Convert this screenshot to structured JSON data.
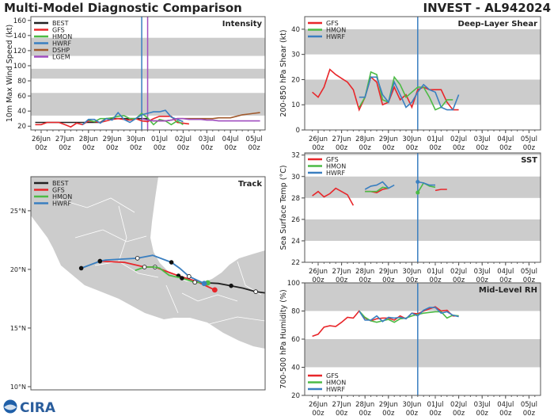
{
  "header": {
    "title": "Multi-Model Diagnostic Comparison",
    "storm": "INVEST - AL942024"
  },
  "colors": {
    "BEST": "#222222",
    "GFS": "#e8262a",
    "HMON": "#4cba45",
    "HWRF": "#3a7fc0",
    "DSHP": "#a0592c",
    "LGEM": "#a04ec0",
    "band": "#cccccc",
    "land": "#cccccc"
  },
  "x_ticks": [
    [
      "26Jun",
      "00z"
    ],
    [
      "27Jun",
      "00z"
    ],
    [
      "28Jun",
      "00z"
    ],
    [
      "29Jun",
      "00z"
    ],
    [
      "30Jun",
      "00z"
    ],
    [
      "01Jul",
      "00z"
    ],
    [
      "02Jul",
      "00z"
    ],
    [
      "03Jul",
      "00z"
    ],
    [
      "04Jul",
      "00z"
    ],
    [
      "05Jul",
      "00z"
    ]
  ],
  "chart_data": [
    {
      "id": "intensity",
      "type": "line",
      "title": "Intensity",
      "ylabel": "10m Max Wind Speed (kt)",
      "ylim": [
        15,
        165
      ],
      "yticks": [
        20,
        40,
        60,
        80,
        100,
        120,
        140,
        160
      ],
      "bands": [
        [
          34,
          64
        ],
        [
          83,
          96
        ],
        [
          113,
          137
        ]
      ],
      "vlines": [
        {
          "time": "30Jun 06z",
          "color": "HWRF"
        },
        {
          "time": "30Jun 12z",
          "color": "LGEM"
        }
      ],
      "legend": [
        "BEST",
        "GFS",
        "HMON",
        "HWRF",
        "DSHP",
        "LGEM"
      ],
      "legend_position": "top-left",
      "series": [
        {
          "name": "BEST",
          "start": "25Jun 18z",
          "interval_hours": 6,
          "values": [
            25,
            25,
            25,
            25,
            25,
            25,
            25,
            25,
            25,
            25,
            25,
            25,
            30,
            30,
            30,
            30,
            30,
            30,
            30,
            30
          ]
        },
        {
          "name": "GFS",
          "start": "25Jun 18z",
          "interval_hours": 6,
          "values": [
            22,
            22,
            25,
            25,
            25,
            22,
            19,
            24,
            22,
            27,
            26,
            25,
            27,
            29,
            30,
            29,
            28,
            30,
            27,
            26,
            30,
            33,
            33,
            33,
            25,
            24,
            23
          ]
        },
        {
          "name": "HMON",
          "start": "28Jun 00z",
          "interval_hours": 6,
          "values": [
            28,
            26,
            30,
            30,
            31,
            33,
            34,
            30,
            30,
            37,
            31,
            22,
            29,
            27,
            22,
            27,
            22
          ]
        },
        {
          "name": "HWRF",
          "start": "27Jun 18z",
          "interval_hours": 6,
          "values": [
            22,
            29,
            29,
            24,
            30,
            28,
            38,
            29,
            25,
            30,
            35,
            37,
            39,
            39,
            41,
            32,
            29,
            26
          ]
        },
        {
          "name": "DSHP",
          "start": "30Jun 06z",
          "interval_hours": 6,
          "values": [
            30,
            28,
            27,
            27,
            27,
            28,
            30,
            30,
            30,
            30,
            30,
            30,
            30,
            31,
            31,
            31,
            33,
            35,
            36,
            37,
            38
          ]
        },
        {
          "name": "LGEM",
          "start": "30Jun 06z",
          "interval_hours": 6,
          "values": [
            30,
            28,
            27,
            27,
            27,
            28,
            30,
            30,
            29,
            29,
            29,
            28,
            28,
            27,
            27,
            27,
            27,
            27,
            27,
            27,
            27
          ]
        }
      ]
    },
    {
      "id": "shear",
      "type": "line",
      "title": "Deep-Layer Shear",
      "ylabel": "200-850 hPa Shear (kt)",
      "ylim": [
        0,
        45
      ],
      "yticks": [
        0,
        10,
        20,
        30,
        40
      ],
      "bands": [
        [
          10,
          20
        ],
        [
          30,
          40
        ]
      ],
      "vlines": [
        {
          "time": "30Jun 06z",
          "color": "HWRF"
        }
      ],
      "legend": [
        "GFS",
        "HMON",
        "HWRF"
      ],
      "legend_position": "top-left",
      "series": [
        {
          "name": "GFS",
          "start": "25Jun 18z",
          "interval_hours": 6,
          "values": [
            15,
            13,
            17,
            24,
            22,
            20.5,
            19,
            16,
            8,
            13,
            21,
            19,
            10,
            11,
            17,
            12,
            14,
            9,
            16,
            17,
            16,
            16,
            16,
            11,
            8,
            8
          ]
        },
        {
          "name": "HMON",
          "start": "27Jun 18z",
          "interval_hours": 6,
          "values": [
            9,
            13,
            23,
            22,
            12,
            11,
            21,
            18,
            13,
            15,
            17,
            17,
            13,
            8,
            9,
            12,
            12
          ]
        },
        {
          "name": "HWRF",
          "start": "27Jun 18z",
          "interval_hours": 6,
          "values": [
            13,
            13,
            21,
            21,
            14,
            11,
            19,
            14,
            9,
            11,
            15,
            18,
            16,
            15,
            9,
            8,
            8,
            14
          ]
        }
      ]
    },
    {
      "id": "sst",
      "type": "line",
      "title": "SST",
      "ylabel": "Sea Surface Temp (°C)",
      "ylim": [
        22,
        32.2
      ],
      "yticks": [
        22,
        24,
        26,
        28,
        30,
        32
      ],
      "bands": [
        [
          24,
          26
        ],
        [
          28,
          30
        ],
        [
          32,
          34
        ]
      ],
      "vlines": [
        {
          "time": "30Jun 06z",
          "color": "HWRF"
        }
      ],
      "legend": [
        "GFS",
        "HMON",
        "HWRF"
      ],
      "legend_position": "top-left",
      "series": [
        {
          "name": "GFS",
          "start": "25Jun 18z",
          "interval_hours": 6,
          "values": [
            28.2,
            28.6,
            28.1,
            28.4,
            28.9,
            28.6,
            28.3,
            27.3,
            null,
            28.6,
            28.6,
            28.5,
            28.8,
            28.9,
            null,
            null,
            null,
            null,
            null,
            null,
            null,
            28.7,
            28.8,
            28.8
          ]
        },
        {
          "name": "HMON",
          "start": "28Jun 00z",
          "interval_hours": 6,
          "values": [
            28.6,
            28.6,
            28.6,
            29.0,
            28.9,
            null,
            null,
            null,
            null,
            28.5,
            29.4,
            29.1,
            29.0
          ]
        },
        {
          "name": "HWRF",
          "start": "28Jun 00z",
          "interval_hours": 6,
          "values": [
            28.8,
            29.1,
            29.2,
            29.5,
            28.9,
            29.2,
            null,
            null,
            null,
            29.5,
            29.4,
            29.2,
            29.2
          ]
        }
      ]
    },
    {
      "id": "rh",
      "type": "line",
      "title": "Mid-Level RH",
      "ylabel": "700-500 hPa Humidity (%)",
      "ylim": [
        20,
        100
      ],
      "yticks": [
        20,
        40,
        60,
        80,
        100
      ],
      "bands": [
        [
          40,
          60
        ],
        [
          80,
          100
        ]
      ],
      "vlines": [
        {
          "time": "30Jun 06z",
          "color": "HWRF"
        }
      ],
      "legend": [
        "GFS",
        "HMON",
        "HWRF"
      ],
      "legend_position": "bottom-left",
      "series": [
        {
          "name": "GFS",
          "start": "25Jun 18z",
          "interval_hours": 6,
          "values": [
            62,
            63.5,
            68.5,
            69.5,
            69,
            72,
            75.5,
            75,
            80,
            75,
            73,
            74.5,
            75,
            75,
            73.5,
            76.5,
            74.5,
            78.5,
            78,
            80,
            81.5,
            83,
            80,
            80.5,
            76.5,
            76.5
          ]
        },
        {
          "name": "HMON",
          "start": "27Jun 18z",
          "interval_hours": 6,
          "values": [
            80,
            75.5,
            73,
            72,
            73,
            74,
            72,
            74.5,
            75,
            76.5,
            77.5,
            78.5,
            79,
            79.5,
            79.5,
            75,
            77,
            76.5
          ]
        },
        {
          "name": "HWRF",
          "start": "27Jun 18z",
          "interval_hours": 6,
          "values": [
            80,
            73.5,
            73.5,
            76.5,
            72.5,
            75.5,
            75,
            75.5,
            74.5,
            78.5,
            76.5,
            80.5,
            82.5,
            82.5,
            78.5,
            79.5,
            77,
            76
          ]
        }
      ]
    },
    {
      "id": "track",
      "type": "map",
      "title": "Track",
      "lon_range": [
        -107.5,
        -87.5
      ],
      "lat_range": [
        9.73,
        27.9
      ],
      "lat_ticks": [
        10,
        15,
        20,
        25
      ],
      "lat_tick_labels": [
        "10°N",
        "15°N",
        "20°N",
        "25°N"
      ],
      "legend": [
        "BEST",
        "GFS",
        "HMON",
        "HWRF"
      ],
      "legend_position": "top-left",
      "tracks": [
        {
          "name": "BEST",
          "points": [
            [
              -87.5,
              18.0
            ],
            [
              -88.3,
              18.1
            ],
            [
              -89.4,
              18.4
            ],
            [
              -90.4,
              18.6
            ],
            [
              -91.5,
              18.8
            ],
            [
              -92.4,
              18.85
            ]
          ],
          "markers": [
            {
              "lon": -88.3,
              "lat": 18.1,
              "style": "open"
            },
            {
              "lon": -90.4,
              "lat": 18.6,
              "style": "filled"
            }
          ]
        },
        {
          "name": "GFS",
          "points": [
            [
              -91.8,
              18.25
            ],
            [
              -93.4,
              19.0
            ],
            [
              -94.9,
              19.45
            ],
            [
              -96.9,
              20.2
            ],
            [
              -97.8,
              20.2
            ],
            [
              -99.5,
              20.6
            ],
            [
              -101.6,
              20.7
            ]
          ],
          "markers": [
            {
              "lon": -91.8,
              "lat": 18.25,
              "style": "start"
            },
            {
              "lon": -94.9,
              "lat": 19.45,
              "style": "filled"
            },
            {
              "lon": -96.9,
              "lat": 20.2,
              "style": "open"
            },
            {
              "lon": -101.6,
              "lat": 20.7,
              "style": "filled"
            }
          ]
        },
        {
          "name": "HMON",
          "points": [
            [
              -92.4,
              18.85
            ],
            [
              -93.5,
              18.9
            ],
            [
              -94.6,
              19.25
            ],
            [
              -95.7,
              19.5
            ],
            [
              -96.5,
              20.1
            ],
            [
              -96.9,
              20.2
            ],
            [
              -97.8,
              20.2
            ],
            [
              -98.6,
              19.9
            ]
          ],
          "markers": [
            {
              "lon": -92.4,
              "lat": 18.85,
              "style": "start"
            },
            {
              "lon": -93.5,
              "lat": 18.9,
              "style": "open"
            },
            {
              "lon": -94.6,
              "lat": 19.25,
              "style": "filled"
            },
            {
              "lon": -97.8,
              "lat": 20.2,
              "style": "open"
            }
          ]
        },
        {
          "name": "HWRF",
          "points": [
            [
              -92.7,
              18.8
            ],
            [
              -94.0,
              19.4
            ],
            [
              -94.8,
              20.1
            ],
            [
              -95.5,
              20.6
            ],
            [
              -97.1,
              21.2
            ],
            [
              -98.4,
              20.95
            ],
            [
              -101.1,
              20.8
            ],
            [
              -101.6,
              20.7
            ],
            [
              -103.2,
              20.1
            ]
          ],
          "markers": [
            {
              "lon": -92.7,
              "lat": 18.8,
              "style": "start"
            },
            {
              "lon": -94.0,
              "lat": 19.4,
              "style": "open"
            },
            {
              "lon": -95.5,
              "lat": 20.6,
              "style": "filled"
            },
            {
              "lon": -98.4,
              "lat": 20.95,
              "style": "open"
            },
            {
              "lon": -101.6,
              "lat": 20.7,
              "style": "filled"
            },
            {
              "lon": -103.2,
              "lat": 20.1,
              "style": "filled"
            }
          ]
        }
      ]
    }
  ],
  "logo": {
    "text": "CIRA",
    "icon": "noaa-logo-icon"
  }
}
